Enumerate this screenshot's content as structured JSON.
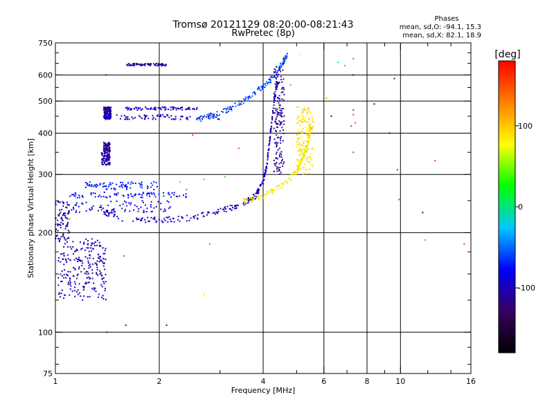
{
  "chart_data": {
    "type": "scatter",
    "title": "Tromsø 20121129 08:20:00-08:21:43",
    "subtitle": "RwPretec (8p)",
    "xlabel": "Frequency [MHz]",
    "ylabel": "Stationary phase Virtual Height [km]",
    "x_scale": "log",
    "y_scale": "log",
    "xlim": [
      1,
      16
    ],
    "ylim": [
      75,
      750
    ],
    "x_ticks": [
      1,
      2,
      4,
      6,
      8,
      10,
      16
    ],
    "x_minor_ticks": [
      3,
      5,
      7,
      9,
      12,
      14
    ],
    "y_ticks": [
      75,
      100,
      200,
      300,
      400,
      500,
      600,
      750
    ],
    "y_minor_ticks": [
      80,
      90,
      125,
      150,
      175,
      250,
      350,
      450,
      550,
      650,
      700
    ],
    "grid_x": [
      2,
      4,
      6,
      8,
      10
    ],
    "grid_y": [
      100,
      200,
      300,
      400,
      500,
      600
    ],
    "stats": {
      "header": "Phases",
      "line_o": "mean, sd,O: -94.1, 15.3",
      "line_x": "mean, sd,X:  82.1, 18.9"
    },
    "colorbar": {
      "label": "[deg]",
      "range": [
        -180,
        180
      ],
      "ticks": [
        100,
        0,
        -100
      ],
      "colors": [
        "#000000",
        "#3a0060",
        "#0000ff",
        "#00c8ff",
        "#00ff00",
        "#ffff00",
        "#ff8000",
        "#ff0000"
      ]
    },
    "series": [
      {
        "segments": [
          [
            1.02,
            125,
            1.42,
            148,
            -100
          ],
          [
            1.02,
            148,
            1.4,
            168,
            -105
          ],
          [
            1.02,
            165,
            1.4,
            192,
            -98
          ],
          [
            1.0,
            190,
            1.1,
            250,
            -110
          ]
        ]
      },
      {
        "segments": [
          [
            1.36,
            320,
            1.44,
            350,
            -105
          ],
          [
            1.38,
            350,
            1.44,
            375,
            -110
          ],
          [
            1.38,
            440,
            1.45,
            460,
            -100
          ],
          [
            1.38,
            460,
            1.45,
            480,
            -112
          ]
        ]
      },
      {
        "segments": [
          [
            1.02,
            230,
            2.2,
            250,
            -90
          ],
          [
            1.1,
            255,
            2.4,
            265,
            -80
          ],
          [
            1.2,
            270,
            2.0,
            285,
            -70
          ],
          [
            1.5,
            440,
            3.0,
            455,
            -100
          ],
          [
            1.6,
            470,
            2.6,
            480,
            -95
          ],
          [
            1.6,
            640,
            2.1,
            650,
            -110
          ]
        ]
      },
      {
        "curve": [
          [
            1.35,
            235
          ],
          [
            1.5,
            222
          ],
          [
            2.0,
            218
          ],
          [
            2.5,
            222
          ],
          [
            3.0,
            232
          ],
          [
            3.5,
            245
          ],
          [
            3.8,
            258
          ],
          [
            4.0,
            285
          ],
          [
            4.1,
            320
          ],
          [
            4.2,
            400
          ],
          [
            4.3,
            500
          ],
          [
            4.4,
            570
          ]
        ],
        "phase": -100
      },
      {
        "curve": [
          [
            2.6,
            440
          ],
          [
            3.0,
            460
          ],
          [
            3.4,
            490
          ],
          [
            3.8,
            530
          ],
          [
            4.2,
            580
          ],
          [
            4.5,
            640
          ],
          [
            4.7,
            690
          ]
        ],
        "phase": -60
      },
      {
        "band": [
          4.3,
          4.6,
          300,
          640
        ],
        "phase": -110
      },
      {
        "curve": [
          [
            3.5,
            248
          ],
          [
            4.0,
            258
          ],
          [
            4.5,
            275
          ],
          [
            5.0,
            305
          ],
          [
            5.2,
            335
          ],
          [
            5.4,
            380
          ],
          [
            5.5,
            420
          ]
        ],
        "phase": 80
      },
      {
        "band": [
          5.0,
          5.6,
          300,
          480
        ],
        "phase": 90
      },
      {
        "points": [
          [
            6.1,
            510,
            40
          ],
          [
            6.3,
            450,
            -120
          ],
          [
            6.6,
            655,
            -20
          ],
          [
            6.9,
            640,
            130
          ],
          [
            7.3,
            672,
            150
          ],
          [
            7.3,
            600,
            -140
          ],
          [
            7.3,
            455,
            160
          ],
          [
            7.2,
            420,
            170
          ],
          [
            7.3,
            470,
            175
          ],
          [
            7.4,
            430,
            150
          ],
          [
            7.3,
            350,
            160
          ],
          [
            8.4,
            490,
            -150
          ],
          [
            9.3,
            400,
            -170
          ],
          [
            9.6,
            585,
            -120
          ],
          [
            9.8,
            310,
            170
          ],
          [
            9.9,
            252,
            160
          ],
          [
            11.6,
            230,
            -100
          ],
          [
            11.8,
            190,
            10
          ],
          [
            12.6,
            330,
            165
          ],
          [
            15.3,
            185,
            160
          ],
          [
            3.1,
            295,
            30
          ],
          [
            3.4,
            360,
            160
          ],
          [
            2.7,
            290,
            20
          ],
          [
            2.8,
            185,
            150
          ],
          [
            2.7,
            130,
            90
          ],
          [
            2.1,
            105,
            -110
          ],
          [
            1.6,
            105,
            -120
          ],
          [
            1.41,
            100,
            -100
          ],
          [
            1.4,
            600,
            -90
          ],
          [
            4.8,
            560,
            140
          ],
          [
            5.1,
            690,
            80
          ],
          [
            4.6,
            670,
            -140
          ],
          [
            3.7,
            500,
            160
          ],
          [
            2.5,
            395,
            165
          ],
          [
            2.4,
            270,
            150
          ],
          [
            2.3,
            285,
            120
          ],
          [
            1.58,
            170,
            160
          ],
          [
            1.1,
            220,
            130
          ]
        ]
      }
    ]
  }
}
